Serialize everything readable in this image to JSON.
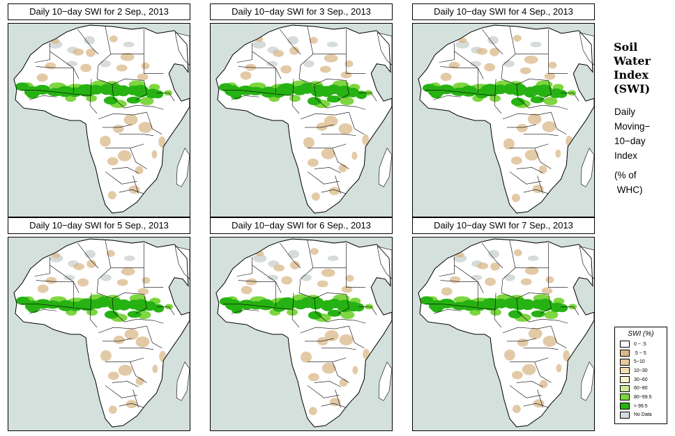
{
  "panels": [
    {
      "title": "Daily 10−day SWI for  2 Sep., 2013"
    },
    {
      "title": "Daily 10−day SWI for  3 Sep., 2013"
    },
    {
      "title": "Daily 10−day SWI for  4 Sep., 2013"
    },
    {
      "title": "Daily 10−day SWI for  5 Sep., 2013"
    },
    {
      "title": "Daily 10−day SWI for  6 Sep., 2013"
    },
    {
      "title": "Daily 10−day SWI for  7 Sep., 2013"
    }
  ],
  "side": {
    "title_lines": [
      "Soil",
      "Water",
      "Index",
      "(SWI)"
    ],
    "subtitle_lines": [
      "Daily",
      "Moving−",
      "10−day",
      "Index"
    ],
    "unit_lines": [
      "(% of",
      " WHC)"
    ]
  },
  "legend": {
    "title": "SWI (%)",
    "items": [
      {
        "label": "0 − .5",
        "color": "#ffffff"
      },
      {
        "label": ".5 − 5",
        "color": "#d9b88a"
      },
      {
        "label": "5−10",
        "color": "#e5c99b"
      },
      {
        "label": "10−30",
        "color": "#f2dfb4"
      },
      {
        "label": "30−60",
        "color": "#f9f0cf"
      },
      {
        "label": "60−80",
        "color": "#cdeaa0"
      },
      {
        "label": "80−99.5",
        "color": "#7ed640"
      },
      {
        "label": "> 99.5",
        "color": "#27b213"
      },
      {
        "label": "No Data",
        "color": "#d5dcd9"
      }
    ]
  },
  "colors": {
    "ocean": "#d3e0dc",
    "land": "#ffffff",
    "no_data": "#d5dcd9",
    "wet": "#27b213",
    "moist": "#7ed640",
    "dry": "#d9b88a"
  }
}
